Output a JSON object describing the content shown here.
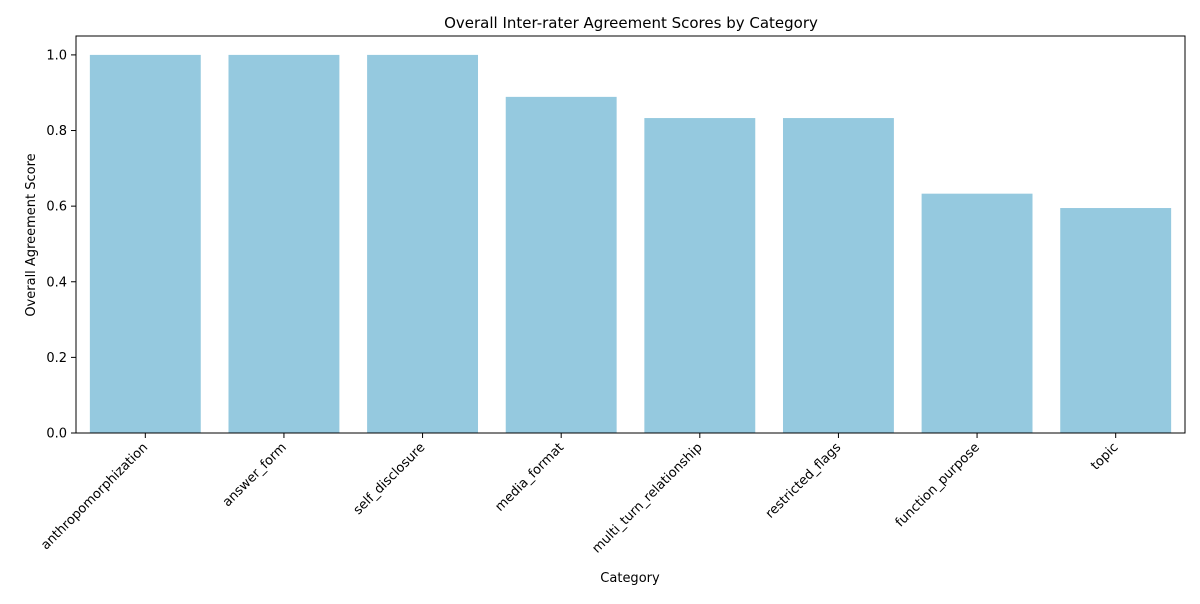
{
  "chart_data": {
    "type": "bar",
    "title": "Overall Inter-rater Agreement Scores by Category",
    "xlabel": "Category",
    "ylabel": "Overall Agreement Score",
    "categories": [
      "anthropomorphization",
      "answer_form",
      "self_disclosure",
      "media_format",
      "multi_turn_relationship",
      "restricted_flags",
      "function_purpose",
      "topic"
    ],
    "values": [
      1.0,
      1.0,
      1.0,
      0.889,
      0.833,
      0.833,
      0.633,
      0.595
    ],
    "ylim": [
      0,
      1.05
    ],
    "yticks": [
      "0.0",
      "0.2",
      "0.4",
      "0.6",
      "0.8",
      "1.0"
    ],
    "bar_color": "#95c9df",
    "grid": false,
    "legend": "none"
  }
}
